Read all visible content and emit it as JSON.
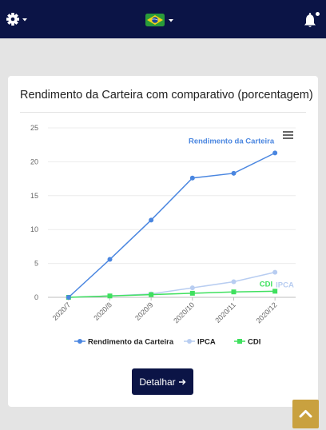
{
  "header": {
    "settings_icon": "gear-icon",
    "language_icon": "brazil-flag-icon",
    "notifications_icon": "bell-icon",
    "notification_dot": true,
    "bg_color": "#0b1446"
  },
  "card": {
    "title": "Rendimento da Carteira com comparativo (porcentagem)",
    "detail_button": "Detalhar",
    "detail_icon": "arrow-right-icon"
  },
  "menu_icon": "hamburger-menu-icon",
  "scroll_top_icon": "chevron-up-icon",
  "chart_data": {
    "type": "line",
    "categories": [
      "2020/7",
      "2020/8",
      "2020/9",
      "2020/10",
      "2020/11",
      "2020/12"
    ],
    "ylim": [
      0,
      25
    ],
    "yticks": [
      "0",
      "5",
      "10",
      "15",
      "20",
      "25"
    ],
    "grid": true,
    "legend_position": "bottom",
    "series": [
      {
        "name": "Rendimento da Carteira",
        "color": "#4a86e0",
        "marker": "circle",
        "values": [
          0,
          5.6,
          11.4,
          17.6,
          18.3,
          21.3
        ],
        "end_label": "Rendimento da Carteira"
      },
      {
        "name": "IPCA",
        "color": "#b8cdf1",
        "marker": "circle",
        "values": [
          0,
          0.2,
          0.5,
          1.4,
          2.3,
          3.7
        ],
        "end_label": "IPCA"
      },
      {
        "name": "CDI",
        "color": "#3fe05e",
        "marker": "square",
        "values": [
          0,
          0.2,
          0.4,
          0.6,
          0.8,
          0.9
        ],
        "end_label": "CDI"
      }
    ]
  }
}
